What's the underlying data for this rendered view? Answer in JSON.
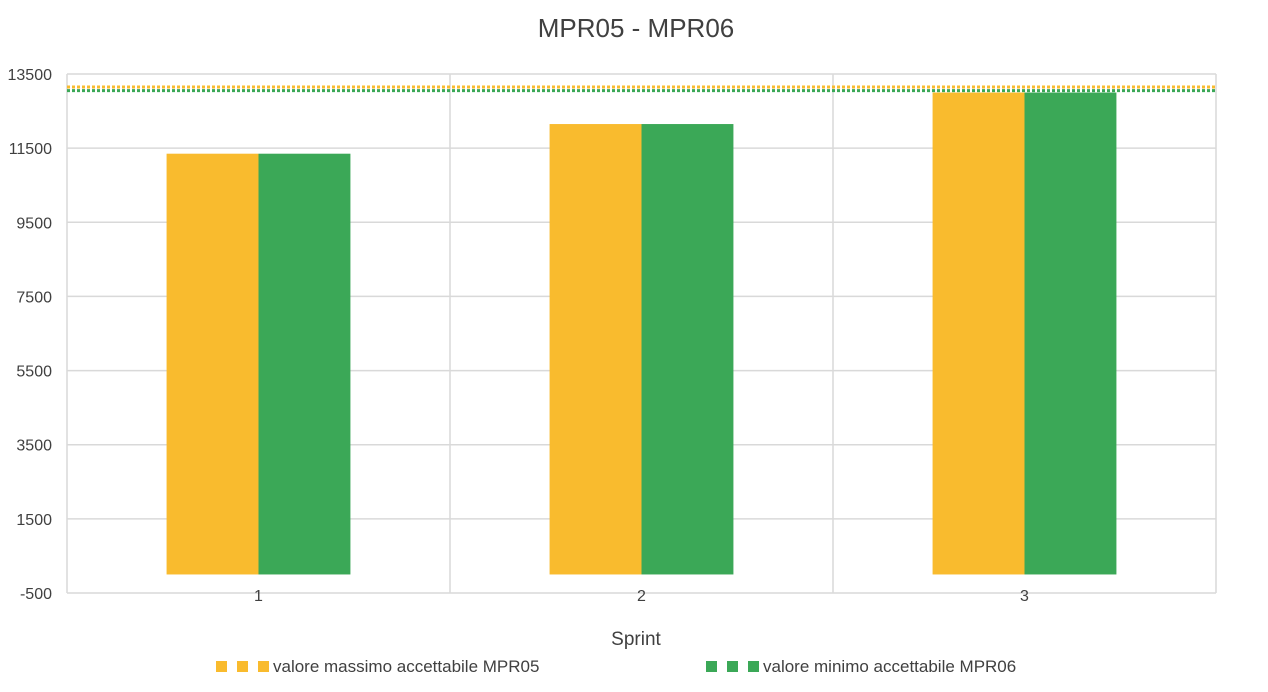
{
  "chart_data": {
    "type": "bar",
    "title": "MPR05 - MPR06",
    "xlabel": "Sprint",
    "ylabel": "",
    "categories": [
      "1",
      "2",
      "3"
    ],
    "yticks": [
      "-500",
      "1500",
      "3500",
      "5500",
      "7500",
      "9500",
      "11500",
      "13500"
    ],
    "ylim": [
      -500,
      13500
    ],
    "grid": true,
    "legend_position": "bottom",
    "series": [
      {
        "name": "",
        "color": "#F9BB2E",
        "values": [
          11350,
          12150,
          13000
        ]
      },
      {
        "name": "",
        "color": "#3BA857",
        "values": [
          11350,
          12150,
          13000
        ]
      }
    ],
    "reference_lines": [
      {
        "name": "valore massimo accettabile MPR05",
        "value": 13150,
        "color": "#F9BB2E",
        "style": "dotted"
      },
      {
        "name": "valore minimo accettabile MPR06",
        "value": 13050,
        "color": "#3BA857",
        "style": "dotted"
      }
    ],
    "colors": {
      "grid": "#D9D9D9",
      "text": "#404040"
    }
  }
}
